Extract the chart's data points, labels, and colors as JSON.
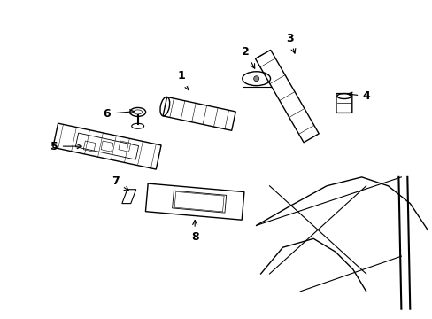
{
  "bg_color": "#ffffff",
  "line_color": "#000000",
  "fig_width": 4.89,
  "fig_height": 3.6,
  "dpi": 100,
  "label_fontsize": 9
}
